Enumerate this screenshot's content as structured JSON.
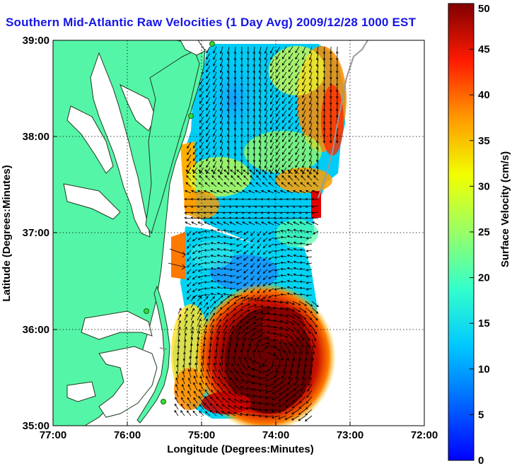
{
  "title": "Southern Mid-Atlantic Raw Velocities (1 Day Avg) 2009/12/28 1000 EST",
  "map": {
    "xlabel": "Longitude (Degrees:Minutes)",
    "ylabel": "Latitude (Degrees:Minutes)",
    "lon_ticks": [
      "77:00",
      "76:00",
      "75:00",
      "74:00",
      "73:00",
      "72:00"
    ],
    "lat_ticks": [
      "39:00",
      "38:00",
      "37:00",
      "36:00",
      "35:00"
    ],
    "lon_range": [
      -77,
      -72
    ],
    "lat_range": [
      35,
      39
    ],
    "grid": "dotted"
  },
  "colorbar": {
    "label": "Surface Velocity (cm/s)",
    "ticks": [
      "0",
      "5",
      "10",
      "15",
      "20",
      "25",
      "30",
      "35",
      "40",
      "45",
      "50"
    ],
    "range": [
      0,
      50
    ]
  },
  "colors": {
    "land": "#55f5a8",
    "coast": "#1f3a1f",
    "title": "#1515e6",
    "station": "#33dd33",
    "arrow": "#000000"
  }
}
